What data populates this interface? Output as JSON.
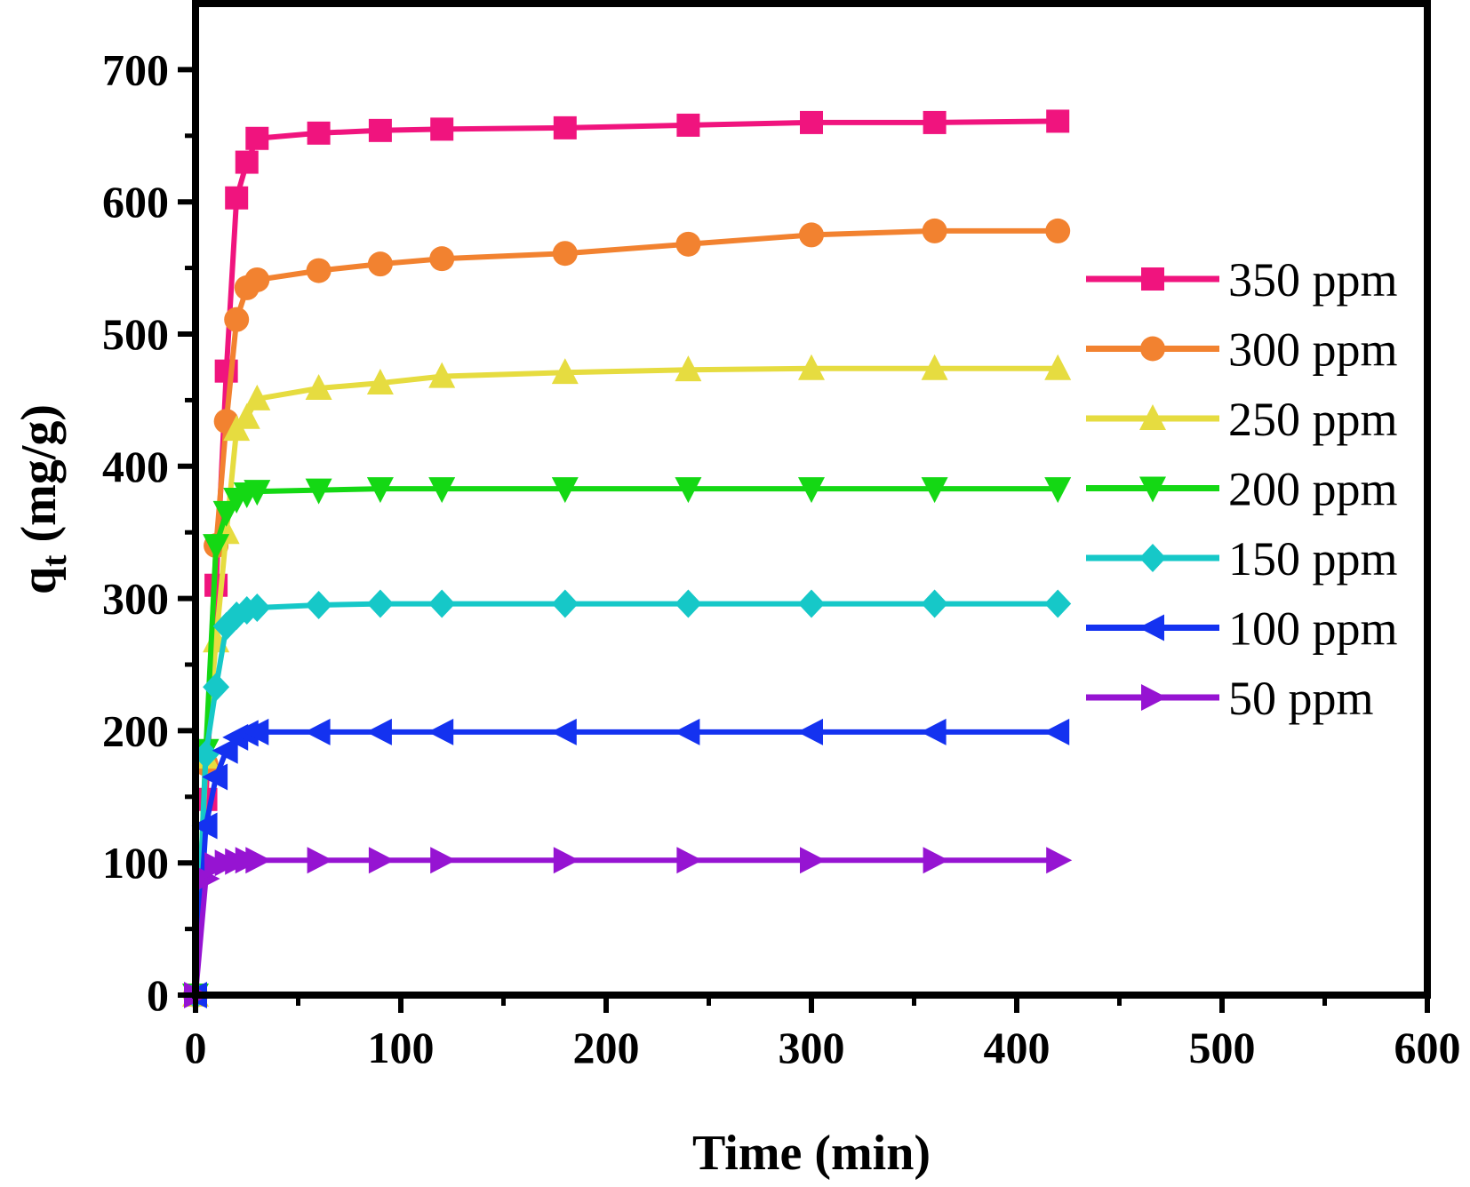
{
  "chart_data": {
    "type": "line",
    "title": "",
    "xlabel": "Time (min)",
    "ylabel": "q",
    "ylabel_subscript": "t",
    "ylabel_unit": " (mg/g)",
    "xlim": [
      0,
      600
    ],
    "ylim": [
      0,
      750
    ],
    "xticks": [
      0,
      100,
      200,
      300,
      400,
      500,
      600
    ],
    "yticks": [
      0,
      100,
      200,
      300,
      400,
      500,
      600,
      700
    ],
    "grid": false,
    "legend_position": "right",
    "x": [
      0,
      5,
      10,
      15,
      20,
      25,
      30,
      60,
      90,
      120,
      180,
      240,
      300,
      360,
      420
    ],
    "series": [
      {
        "name": "350 ppm",
        "color": "#f0147e",
        "marker": "square",
        "values": [
          0,
          148,
          310,
          472,
          603,
          630,
          648,
          652,
          654,
          655,
          656,
          658,
          660,
          660,
          661
        ]
      },
      {
        "name": "300 ppm",
        "color": "#f28230",
        "marker": "circle",
        "values": [
          0,
          175,
          340,
          434,
          511,
          535,
          541,
          548,
          553,
          557,
          561,
          568,
          575,
          578,
          578
        ]
      },
      {
        "name": "250 ppm",
        "color": "#e6dc40",
        "marker": "triangle-up",
        "values": [
          0,
          180,
          268,
          350,
          428,
          437,
          451,
          459,
          463,
          468,
          471,
          473,
          474,
          474,
          474
        ]
      },
      {
        "name": "200 ppm",
        "color": "#14d814",
        "marker": "triangle-down",
        "values": [
          0,
          185,
          340,
          365,
          375,
          379,
          381,
          382,
          383,
          383,
          383,
          383,
          383,
          383,
          383
        ]
      },
      {
        "name": "150 ppm",
        "color": "#16c8c8",
        "marker": "diamond",
        "values": [
          0,
          182,
          233,
          279,
          287,
          291,
          293,
          295,
          296,
          296,
          296,
          296,
          296,
          296,
          296
        ]
      },
      {
        "name": "100 ppm",
        "color": "#1432f0",
        "marker": "triangle-left",
        "values": [
          0,
          128,
          165,
          185,
          195,
          198,
          199,
          199,
          199,
          199,
          199,
          199,
          199,
          199,
          199
        ]
      },
      {
        "name": "50 ppm",
        "color": "#9614d2",
        "marker": "triangle-right",
        "values": [
          0,
          88,
          98,
          100,
          101,
          102,
          102,
          102,
          102,
          102,
          102,
          102,
          102,
          102,
          102
        ]
      }
    ]
  }
}
